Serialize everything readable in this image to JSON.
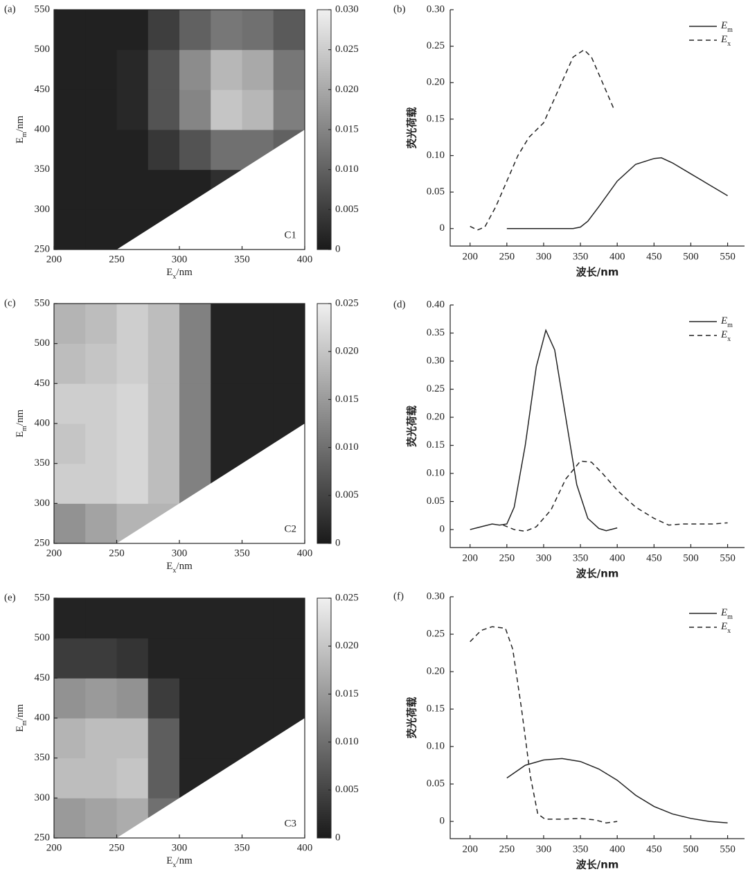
{
  "chart_data": [
    {
      "type": "contour",
      "panel": "(a)",
      "label": "C1",
      "xlabel": [
        "E",
        "x",
        "/nm"
      ],
      "ylabel": [
        "E",
        "m",
        "/nm"
      ],
      "xlim": [
        200,
        400
      ],
      "ylim": [
        250,
        550
      ],
      "xticks": [
        200,
        250,
        300,
        350,
        400
      ],
      "yticks": [
        250,
        300,
        350,
        400,
        450,
        500,
        550
      ],
      "xbins": [
        200,
        225,
        250,
        275,
        300,
        325,
        350,
        375,
        400
      ],
      "ybins": [
        250,
        300,
        350,
        400,
        450,
        500,
        550
      ],
      "z": [
        [
          0.001,
          0.001,
          0.001,
          0.001,
          0.001,
          0.001,
          0.001,
          0.001
        ],
        [
          0.001,
          0.001,
          0.001,
          0.001,
          0.001,
          0.003,
          0.004,
          0.004
        ],
        [
          0.001,
          0.001,
          0.001,
          0.004,
          0.008,
          0.012,
          0.012,
          0.01
        ],
        [
          0.001,
          0.001,
          0.002,
          0.008,
          0.015,
          0.024,
          0.022,
          0.014
        ],
        [
          0.001,
          0.001,
          0.002,
          0.008,
          0.016,
          0.022,
          0.02,
          0.013
        ],
        [
          0.001,
          0.001,
          0.001,
          0.005,
          0.01,
          0.013,
          0.012,
          0.009
        ]
      ],
      "colormap": "gray",
      "zlim": [
        0,
        0.03
      ],
      "zticks": [
        0,
        {
          "value": 0.005,
          "label": "0.005"
        },
        {
          "value": 0.01,
          "label": "0.010"
        },
        {
          "value": 0.015,
          "label": "0.015"
        },
        {
          "value": 0.02,
          "label": "0.020"
        },
        {
          "value": 0.025,
          "label": "0.025"
        },
        {
          "value": 0.03,
          "label": "0.030"
        }
      ]
    },
    {
      "type": "line",
      "panel": "(b)",
      "xlabel": "波长/nm",
      "ylabel": "荧光荷载",
      "legend": "upper right",
      "xlim": [
        173,
        573
      ],
      "ylim": [
        -0.024,
        0.3
      ],
      "xticks": [
        200,
        250,
        300,
        350,
        400,
        450,
        500,
        550
      ],
      "yticks": [
        0,
        0.05,
        {
          "value": 0.1,
          "label": "0.10"
        },
        0.15,
        {
          "value": 0.2,
          "label": "0.20"
        },
        0.25,
        {
          "value": 0.3,
          "label": "0.30"
        }
      ],
      "series": [
        {
          "name": "Em",
          "color": "#222222",
          "style": "solid",
          "x": [
            250,
            300,
            340,
            350,
            360,
            375,
            400,
            425,
            450,
            460,
            475,
            500,
            525,
            550
          ],
          "values": [
            0,
            0,
            0,
            0.002,
            0.01,
            0.03,
            0.065,
            0.088,
            0.096,
            0.097,
            0.09,
            0.075,
            0.06,
            0.045
          ]
        },
        {
          "name": "Ex",
          "color": "#222222",
          "style": "dashed",
          "x": [
            200,
            210,
            220,
            235,
            250,
            265,
            280,
            300,
            320,
            340,
            355,
            365,
            380,
            395
          ],
          "values": [
            0.003,
            -0.002,
            0.002,
            0.03,
            0.065,
            0.1,
            0.125,
            0.145,
            0.19,
            0.235,
            0.245,
            0.235,
            0.2,
            0.165
          ]
        }
      ]
    },
    {
      "type": "contour",
      "panel": "(c)",
      "label": "C2",
      "xlabel": [
        "E",
        "x",
        "/nm"
      ],
      "ylabel": [
        "E",
        "m",
        "/nm"
      ],
      "xlim": [
        200,
        400
      ],
      "ylim": [
        250,
        550
      ],
      "xticks": [
        200,
        250,
        300,
        350,
        400
      ],
      "yticks": [
        250,
        300,
        350,
        400,
        450,
        500,
        550
      ],
      "xbins": [
        200,
        225,
        250,
        275,
        300,
        325,
        350,
        375,
        400
      ],
      "ybins": [
        250,
        300,
        350,
        400,
        450,
        500,
        550
      ],
      "z": [
        [
          0.014,
          0.016,
          0.018,
          0.018,
          0.012,
          0.001,
          0.001,
          0.001
        ],
        [
          0.021,
          0.021,
          0.022,
          0.019,
          0.012,
          0.001,
          0.001,
          0.001
        ],
        [
          0.02,
          0.021,
          0.022,
          0.019,
          0.012,
          0.001,
          0.001,
          0.001
        ],
        [
          0.021,
          0.021,
          0.022,
          0.019,
          0.012,
          0.001,
          0.001,
          0.001
        ],
        [
          0.019,
          0.02,
          0.021,
          0.019,
          0.012,
          0.001,
          0.001,
          0.001
        ],
        [
          0.018,
          0.019,
          0.021,
          0.019,
          0.012,
          0.001,
          0.001,
          0.001
        ]
      ],
      "colormap": "gray",
      "zlim": [
        0,
        0.025
      ],
      "zticks": [
        0,
        {
          "value": 0.005,
          "label": "0.005"
        },
        {
          "value": 0.01,
          "label": "0.010"
        },
        {
          "value": 0.015,
          "label": "0.015"
        },
        {
          "value": 0.02,
          "label": "0.020"
        },
        {
          "value": 0.025,
          "label": "0.025"
        }
      ]
    },
    {
      "type": "line",
      "panel": "(d)",
      "xlabel": "波长/nm",
      "ylabel": "荧光荷载",
      "legend": "upper right",
      "xlim": [
        173,
        573
      ],
      "ylim": [
        -0.032,
        0.4
      ],
      "xticks": [
        200,
        250,
        300,
        350,
        400,
        450,
        500,
        550
      ],
      "yticks": [
        0,
        0.05,
        {
          "value": 0.1,
          "label": "0.10"
        },
        0.15,
        {
          "value": 0.2,
          "label": "0.20"
        },
        0.25,
        {
          "value": 0.3,
          "label": "0.30"
        },
        0.35,
        {
          "value": 0.4,
          "label": "0.40"
        }
      ],
      "series": [
        {
          "name": "Em",
          "color": "#222222",
          "style": "solid",
          "x": [
            200,
            215,
            230,
            240,
            250,
            260,
            275,
            290,
            303,
            315,
            330,
            345,
            360,
            375,
            385,
            400
          ],
          "values": [
            0,
            0.005,
            0.01,
            0.008,
            0.01,
            0.04,
            0.15,
            0.29,
            0.355,
            0.32,
            0.2,
            0.08,
            0.02,
            0.002,
            -0.002,
            0.003
          ]
        },
        {
          "name": "Ex",
          "color": "#222222",
          "style": "dashed",
          "x": [
            245,
            260,
            275,
            290,
            310,
            330,
            350,
            365,
            380,
            400,
            425,
            450,
            470,
            490,
            510,
            530,
            550
          ],
          "values": [
            0.008,
            0,
            -0.003,
            0.005,
            0.035,
            0.09,
            0.122,
            0.12,
            0.1,
            0.07,
            0.04,
            0.02,
            0.008,
            0.01,
            0.01,
            0.01,
            0.012
          ]
        }
      ]
    },
    {
      "type": "contour",
      "panel": "(e)",
      "label": "C3",
      "xlabel": [
        "E",
        "x",
        "/nm"
      ],
      "ylabel": [
        "E",
        "m",
        "/nm"
      ],
      "xlim": [
        200,
        400
      ],
      "ylim": [
        250,
        550
      ],
      "xticks": [
        200,
        250,
        300,
        350,
        400
      ],
      "yticks": [
        250,
        300,
        350,
        400,
        450,
        500,
        550
      ],
      "xbins": [
        200,
        225,
        250,
        275,
        300,
        325,
        350,
        375,
        400
      ],
      "ybins": [
        250,
        300,
        350,
        400,
        450,
        500,
        550
      ],
      "z": [
        [
          0.015,
          0.016,
          0.017,
          0.01,
          0.001,
          0.001,
          0.001,
          0.001
        ],
        [
          0.019,
          0.019,
          0.02,
          0.008,
          0.001,
          0.001,
          0.001,
          0.001
        ],
        [
          0.018,
          0.019,
          0.019,
          0.008,
          0.001,
          0.001,
          0.001,
          0.001
        ],
        [
          0.014,
          0.015,
          0.014,
          0.004,
          0.001,
          0.001,
          0.001,
          0.001
        ],
        [
          0.004,
          0.004,
          0.003,
          0.001,
          0.001,
          0.001,
          0.001,
          0.001
        ],
        [
          0.001,
          0.001,
          0.001,
          0.001,
          0.001,
          0.001,
          0.001,
          0.001
        ]
      ],
      "colormap": "gray",
      "zlim": [
        0,
        0.025
      ],
      "zticks": [
        0,
        {
          "value": 0.005,
          "label": "0.005"
        },
        {
          "value": 0.01,
          "label": "0.010"
        },
        {
          "value": 0.015,
          "label": "0.015"
        },
        {
          "value": 0.02,
          "label": "0.020"
        },
        {
          "value": 0.025,
          "label": "0.025"
        }
      ]
    },
    {
      "type": "line",
      "panel": "(f)",
      "xlabel": "波长/nm",
      "ylabel": "荧光荷载",
      "legend": "upper right",
      "xlim": [
        173,
        573
      ],
      "ylim": [
        -0.023,
        0.3
      ],
      "xticks": [
        200,
        250,
        300,
        350,
        400,
        450,
        500,
        550
      ],
      "yticks": [
        0,
        0.05,
        {
          "value": 0.1,
          "label": "0.10"
        },
        0.15,
        {
          "value": 0.2,
          "label": "0.20"
        },
        0.25,
        {
          "value": 0.3,
          "label": "0.30"
        }
      ],
      "series": [
        {
          "name": "Em",
          "color": "#222222",
          "style": "solid",
          "x": [
            250,
            275,
            300,
            325,
            350,
            375,
            400,
            425,
            450,
            475,
            500,
            525,
            550
          ],
          "values": [
            0.058,
            0.075,
            0.082,
            0.084,
            0.08,
            0.07,
            0.055,
            0.035,
            0.02,
            0.01,
            0.004,
            0,
            -0.002
          ]
        },
        {
          "name": "Ex",
          "color": "#222222",
          "style": "dashed",
          "x": [
            200,
            215,
            230,
            248,
            258,
            270,
            282,
            292,
            302,
            325,
            350,
            370,
            385,
            400
          ],
          "values": [
            0.24,
            0.255,
            0.26,
            0.258,
            0.23,
            0.15,
            0.06,
            0.01,
            0.003,
            0.003,
            0.004,
            0.002,
            -0.002,
            0
          ]
        }
      ]
    }
  ]
}
